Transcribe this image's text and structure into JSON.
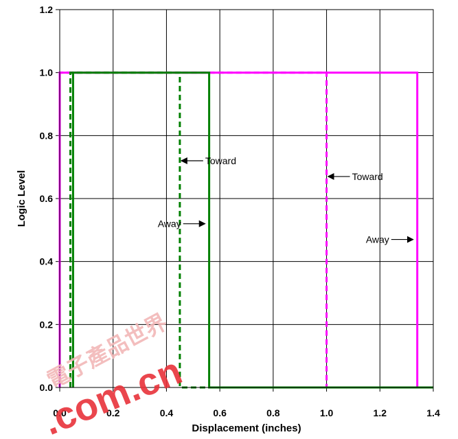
{
  "chart_data": {
    "type": "line",
    "title": "",
    "xlabel": "Displacement (inches)",
    "ylabel": "Logic Level",
    "xlim": [
      0.0,
      1.4
    ],
    "ylim": [
      0.0,
      1.2
    ],
    "x_ticks": [
      "0.0",
      "0.2",
      "0.4",
      "0.6",
      "0.8",
      "1.0",
      "1.2",
      "1.4"
    ],
    "y_ticks": [
      "0.0",
      "0.2",
      "0.4",
      "0.6",
      "0.8",
      "1.0",
      "1.2"
    ],
    "grid": true,
    "series": [
      {
        "color": "#FF00FF",
        "dash": "solid",
        "x": [
          0.0,
          0.0,
          0.02,
          0.02,
          1.34,
          1.34,
          1.4
        ],
        "y": [
          0.0,
          1.0,
          1.0,
          1.0,
          1.0,
          0.0,
          0.0
        ]
      },
      {
        "color": "#FF00FF",
        "dash": "dashed",
        "x": [
          0.0,
          0.0,
          1.0,
          1.0,
          1.4
        ],
        "y": [
          0.0,
          1.0,
          1.0,
          0.0,
          0.0
        ]
      },
      {
        "color": "#008000",
        "dash": "solid",
        "x": [
          0.05,
          0.05,
          0.56,
          0.56,
          1.4
        ],
        "y": [
          0.0,
          1.0,
          1.0,
          0.0,
          0.0
        ]
      },
      {
        "color": "#008000",
        "dash": "dashed",
        "x": [
          0.04,
          0.04,
          0.45,
          0.45,
          1.4
        ],
        "y": [
          0.0,
          1.0,
          1.0,
          0.0,
          0.0
        ]
      }
    ],
    "annotations": [
      {
        "text": "Toward",
        "arrow_x": 0.45,
        "arrow_y": 0.72,
        "side": "right"
      },
      {
        "text": "Away",
        "arrow_x": 0.55,
        "arrow_y": 0.52,
        "side": "left"
      },
      {
        "text": "Toward",
        "arrow_x": 1.0,
        "arrow_y": 0.67,
        "side": "right"
      },
      {
        "text": "Away",
        "arrow_x": 1.33,
        "arrow_y": 0.47,
        "side": "left"
      }
    ]
  },
  "watermark": {
    "domain": ".com.cn",
    "chars": "電子產品世界"
  }
}
